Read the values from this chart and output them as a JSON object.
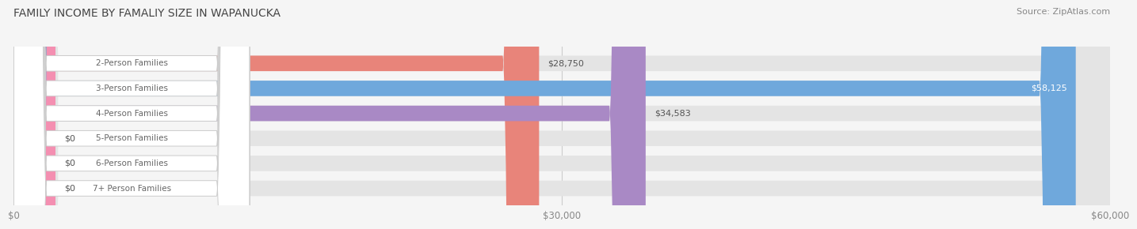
{
  "title": "FAMILY INCOME BY FAMALIY SIZE IN WAPANUCKA",
  "source": "Source: ZipAtlas.com",
  "categories": [
    "2-Person Families",
    "3-Person Families",
    "4-Person Families",
    "5-Person Families",
    "6-Person Families",
    "7+ Person Families"
  ],
  "values": [
    28750,
    58125,
    34583,
    0,
    0,
    0
  ],
  "bar_colors": [
    "#E8847A",
    "#6FA8DC",
    "#A989C5",
    "#5BBCB0",
    "#9FA8DA",
    "#F48FB1"
  ],
  "label_text_color": "#666666",
  "value_labels": [
    "$28,750",
    "$58,125",
    "$34,583",
    "$0",
    "$0",
    "$0"
  ],
  "xlim": [
    0,
    60000
  ],
  "xticks": [
    0,
    30000,
    60000
  ],
  "xtick_labels": [
    "$0",
    "$30,000",
    "$60,000"
  ],
  "background_color": "#F5F5F5",
  "bar_background_color": "#E4E4E4",
  "title_fontsize": 10,
  "source_fontsize": 8,
  "bar_height": 0.62
}
